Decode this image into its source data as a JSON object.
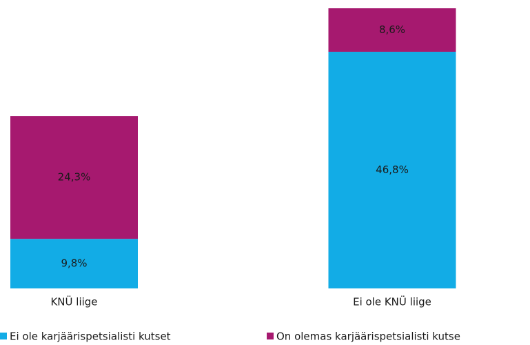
{
  "chart_data": {
    "type": "stacked_bar",
    "categories": [
      "KNÜ liige",
      "Ei ole KNÜ liige"
    ],
    "series": [
      {
        "name": "Ei ole karjäärispetsialisti kutset",
        "color": "#12ace6",
        "values": [
          9.8,
          46.8
        ],
        "value_labels": [
          "9,8%",
          "46,8%"
        ]
      },
      {
        "name": "On olemas karjäärispetsialisti kutse",
        "color": "#a6196f",
        "values": [
          24.3,
          8.6
        ],
        "value_labels": [
          "24,3%",
          "8,6%"
        ]
      }
    ],
    "legend": "bottom"
  }
}
